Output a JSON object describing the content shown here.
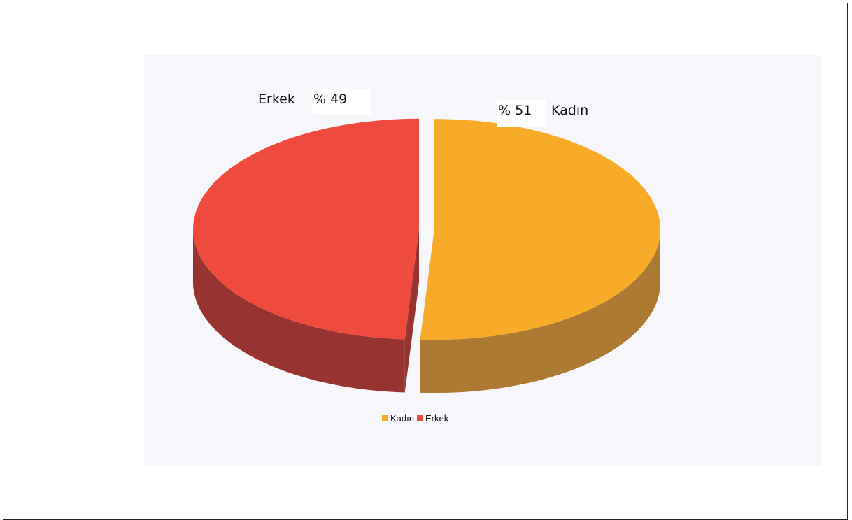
{
  "chart_data": {
    "type": "pie",
    "three_d": true,
    "categories": [
      "Kadın",
      "Erkek"
    ],
    "values": [
      51,
      49
    ],
    "value_labels": [
      "% 51",
      "% 49"
    ],
    "colors": {
      "Kadın": {
        "top": "#f8aa29",
        "side": "#ad7a33"
      },
      "Erkek": {
        "top": "#ef4a3e",
        "side": "#973330"
      }
    },
    "plot_background": "#f7f6fa",
    "legend_position": "bottom",
    "title": ""
  }
}
